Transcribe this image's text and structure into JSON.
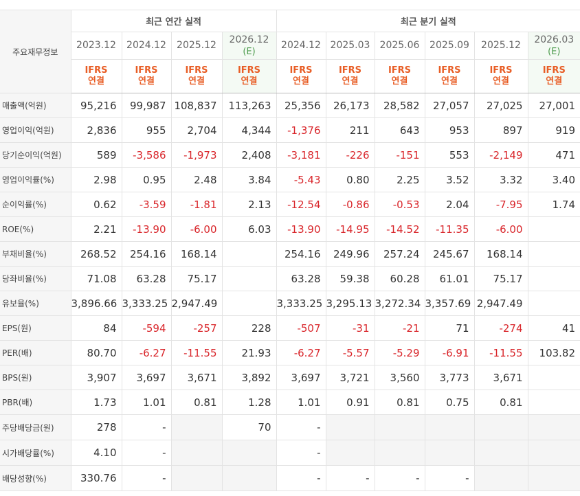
{
  "table": {
    "corner_label": "주요재무정보",
    "groups": [
      {
        "title": "최근 연간 실적",
        "span": 4
      },
      {
        "title": "최근 분기 실적",
        "span": 6
      }
    ],
    "periods": [
      {
        "date": "2023.12",
        "basis": "IFRS",
        "scope": "연결"
      },
      {
        "date": "2024.12",
        "basis": "IFRS",
        "scope": "연결"
      },
      {
        "date": "2025.12",
        "basis": "IFRS",
        "scope": "연결"
      },
      {
        "date": "2026.12",
        "note": "(E)",
        "basis": "IFRS",
        "scope": "연결"
      },
      {
        "date": "2024.12",
        "basis": "IFRS",
        "scope": "연결"
      },
      {
        "date": "2025.03",
        "basis": "IFRS",
        "scope": "연결"
      },
      {
        "date": "2025.06",
        "basis": "IFRS",
        "scope": "연결"
      },
      {
        "date": "2025.09",
        "basis": "IFRS",
        "scope": "연결"
      },
      {
        "date": "2025.12",
        "basis": "IFRS",
        "scope": "연결"
      },
      {
        "date": "2026.03",
        "note": "(E)",
        "basis": "IFRS",
        "scope": "연결"
      }
    ],
    "rows": [
      {
        "label": "매출액(억원)",
        "cells": [
          "95,216",
          "99,987",
          "108,837",
          "113,263",
          "25,356",
          "26,173",
          "28,582",
          "27,057",
          "27,025",
          "27,001"
        ]
      },
      {
        "label": "영업이익(억원)",
        "cells": [
          "2,836",
          "955",
          "2,704",
          "4,344",
          "-1,376",
          "211",
          "643",
          "953",
          "897",
          "919"
        ]
      },
      {
        "label": "당기순이익(억원)",
        "cells": [
          "589",
          "-3,586",
          "-1,973",
          "2,408",
          "-3,181",
          "-226",
          "-151",
          "553",
          "-2,149",
          "471"
        ]
      },
      {
        "label": "영업이익률(%)",
        "cells": [
          "2.98",
          "0.95",
          "2.48",
          "3.84",
          "-5.43",
          "0.80",
          "2.25",
          "3.52",
          "3.32",
          "3.40"
        ]
      },
      {
        "label": "순이익률(%)",
        "cells": [
          "0.62",
          "-3.59",
          "-1.81",
          "2.13",
          "-12.54",
          "-0.86",
          "-0.53",
          "2.04",
          "-7.95",
          "1.74"
        ]
      },
      {
        "label": "ROE(%)",
        "cells": [
          "2.21",
          "-13.90",
          "-6.00",
          "6.03",
          "-13.90",
          "-14.95",
          "-14.52",
          "-11.35",
          "-6.00",
          null
        ]
      },
      {
        "label": "부채비율(%)",
        "cells": [
          "268.52",
          "254.16",
          "168.14",
          null,
          "254.16",
          "249.96",
          "257.24",
          "245.67",
          "168.14",
          null
        ]
      },
      {
        "label": "당좌비율(%)",
        "cells": [
          "71.08",
          "63.28",
          "75.17",
          null,
          "63.28",
          "59.38",
          "60.28",
          "61.01",
          "75.17",
          null
        ]
      },
      {
        "label": "유보율(%)",
        "cells": [
          "3,896.66",
          "3,333.25",
          "2,947.49",
          null,
          "3,333.25",
          "3,295.13",
          "3,272.34",
          "3,357.69",
          "2,947.49",
          null
        ]
      },
      {
        "label": "EPS(원)",
        "cells": [
          "84",
          "-594",
          "-257",
          "228",
          "-507",
          "-31",
          "-21",
          "71",
          "-274",
          "41"
        ]
      },
      {
        "label": "PER(배)",
        "cells": [
          "80.70",
          "-6.27",
          "-11.55",
          "21.93",
          "-6.27",
          "-5.57",
          "-5.29",
          "-6.91",
          "-11.55",
          "103.82"
        ]
      },
      {
        "label": "BPS(원)",
        "cells": [
          "3,907",
          "3,697",
          "3,671",
          "3,892",
          "3,697",
          "3,721",
          "3,560",
          "3,773",
          "3,671",
          null
        ]
      },
      {
        "label": "PBR(배)",
        "cells": [
          "1.73",
          "1.01",
          "0.81",
          "1.28",
          "1.01",
          "0.91",
          "0.81",
          "0.75",
          "0.81",
          null
        ]
      },
      {
        "label": "주당배당금(원)",
        "cells": [
          "278",
          "-",
          null,
          "70",
          "-",
          null,
          null,
          null,
          null,
          null
        ]
      },
      {
        "label": "시가배당률(%)",
        "cells": [
          "4.10",
          "-",
          null,
          null,
          "-",
          null,
          null,
          null,
          null,
          null
        ]
      },
      {
        "label": "배당성향(%)",
        "cells": [
          "330.76",
          "-",
          null,
          null,
          "-",
          "-",
          "-",
          "-",
          null,
          null
        ]
      }
    ]
  }
}
